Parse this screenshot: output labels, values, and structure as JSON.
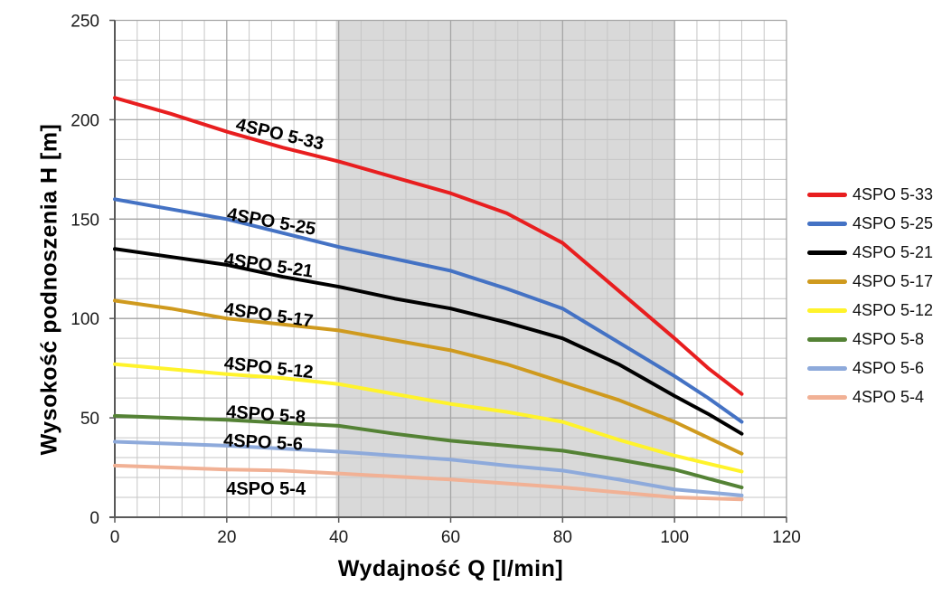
{
  "chart_data": {
    "type": "line",
    "title": "",
    "xlabel": "Wydajność Q [l/min]",
    "ylabel": "Wysokość podnoszenia H [m]",
    "xlim": [
      0,
      120
    ],
    "ylim": [
      0,
      250
    ],
    "x_ticks": [
      0,
      20,
      40,
      60,
      80,
      100,
      120
    ],
    "y_ticks": [
      0,
      50,
      100,
      150,
      200,
      250
    ],
    "x_minor_step": 4,
    "y_minor_step": 10,
    "grid": true,
    "legend_position": "right",
    "operating_band": {
      "from": 39.5,
      "to": 100,
      "color": "#d9d9d9"
    },
    "colors": {
      "grid_minor": "#c6c6c6",
      "grid_major": "#a6a6a6",
      "axis": "#595959",
      "tick_label": "#1a1a1a",
      "curve_label": "#000000"
    },
    "x": [
      0,
      10,
      20,
      30,
      40,
      50,
      60,
      70,
      80,
      90,
      100,
      106,
      112
    ],
    "series": [
      {
        "name": "4SPO 5-33",
        "color": "#e81e1f",
        "values": [
          211,
          203,
          194,
          186,
          179,
          171,
          163,
          153,
          138,
          114,
          90,
          75,
          62
        ],
        "label": {
          "q": 29.5,
          "h": 193,
          "rot": 13
        }
      },
      {
        "name": "4SPO 5-25",
        "color": "#4472c4",
        "values": [
          160,
          155,
          150,
          143,
          136,
          130,
          124,
          115,
          105,
          88,
          71,
          60,
          48
        ],
        "label": {
          "q": 28,
          "h": 149,
          "rot": 10
        }
      },
      {
        "name": "4SPO 5-21",
        "color": "#000000",
        "values": [
          135,
          131,
          127,
          121,
          116,
          110,
          105,
          98,
          90,
          77,
          61,
          52,
          42
        ],
        "label": {
          "q": 27.5,
          "h": 127,
          "rot": 8
        }
      },
      {
        "name": "4SPO 5-17",
        "color": "#cf9a1e",
        "values": [
          109,
          105,
          100,
          97,
          94,
          89,
          84,
          77,
          68,
          59,
          48,
          40,
          32
        ],
        "label": {
          "q": 27.5,
          "h": 102,
          "rot": 8
        }
      },
      {
        "name": "4SPO 5-12",
        "color": "#fff32b",
        "values": [
          77,
          74.5,
          72,
          70,
          67,
          62,
          57,
          53,
          48,
          39,
          31,
          27,
          23
        ],
        "label": {
          "q": 27.5,
          "h": 75.5,
          "rot": 6
        }
      },
      {
        "name": "4SPO 5-8",
        "color": "#548235",
        "values": [
          51,
          50,
          49,
          47.5,
          46,
          42,
          38.5,
          36,
          33.5,
          29,
          24,
          19.5,
          15
        ],
        "label": {
          "q": 27,
          "h": 52,
          "rot": 4
        }
      },
      {
        "name": "4SPO 5-6",
        "color": "#8eaadb",
        "values": [
          38,
          37,
          36,
          34.5,
          33,
          31,
          29,
          26,
          23.5,
          19,
          14,
          12.5,
          11
        ],
        "label": {
          "q": 26.5,
          "h": 38,
          "rot": 3
        }
      },
      {
        "name": "4SPO 5-4",
        "color": "#f1b195",
        "values": [
          26,
          25,
          24,
          23.5,
          22,
          20.5,
          19,
          17,
          15,
          12.5,
          10,
          9.5,
          9
        ],
        "label": {
          "q": 27,
          "h": 14.5,
          "rot": 0
        }
      }
    ]
  }
}
